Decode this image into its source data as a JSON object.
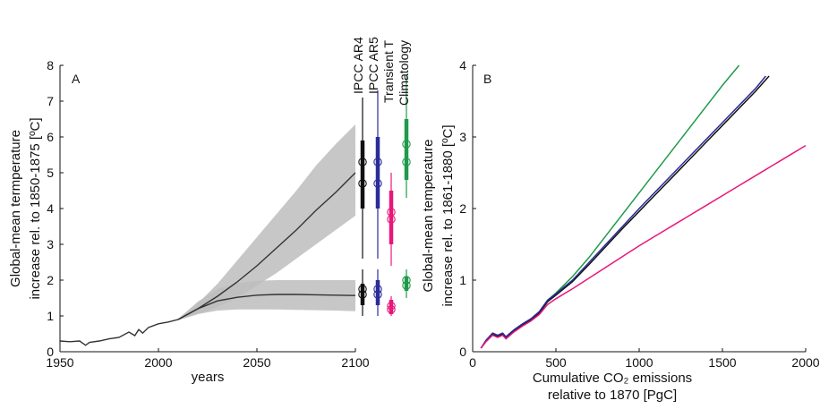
{
  "chart_data": [
    {
      "type": "line",
      "panel_label": "A",
      "xlabel": "years",
      "ylabel_lines": [
        "Global-mean termperature",
        "increase rel. to 1850-1875 [ºC]"
      ],
      "xlim": [
        1950,
        2100
      ],
      "ylim": [
        0,
        8
      ],
      "xticks": [
        1950,
        2000,
        2050,
        2100
      ],
      "yticks": [
        0,
        1,
        2,
        3,
        4,
        5,
        6,
        7,
        8
      ],
      "grid": false,
      "series": [
        {
          "color": "#333333",
          "x": [
            1950,
            1955,
            1960,
            1963,
            1965,
            1970,
            1975,
            1980,
            1985,
            1988,
            1990,
            1992,
            1995,
            2000,
            2005,
            2010,
            2020,
            2030,
            2040,
            2050,
            2060,
            2070,
            2080,
            2090,
            2100
          ],
          "y": [
            0.3,
            0.28,
            0.3,
            0.18,
            0.26,
            0.3,
            0.36,
            0.4,
            0.55,
            0.45,
            0.62,
            0.52,
            0.68,
            0.78,
            0.83,
            0.9,
            1.2,
            1.55,
            1.95,
            2.4,
            2.9,
            3.4,
            3.95,
            4.45,
            5.0
          ],
          "y_low": [
            0.3,
            0.28,
            0.3,
            0.18,
            0.26,
            0.3,
            0.36,
            0.4,
            0.55,
            0.45,
            0.62,
            0.52,
            0.68,
            0.78,
            0.83,
            0.88,
            1.05,
            1.25,
            1.5,
            1.85,
            2.2,
            2.6,
            3.0,
            3.4,
            3.8
          ],
          "y_high": [
            0.3,
            0.28,
            0.3,
            0.18,
            0.26,
            0.3,
            0.36,
            0.4,
            0.55,
            0.45,
            0.62,
            0.52,
            0.68,
            0.78,
            0.83,
            0.92,
            1.35,
            1.9,
            2.55,
            3.2,
            3.85,
            4.5,
            5.2,
            5.8,
            6.35
          ]
        },
        {
          "color": "#333333",
          "x": [
            2010,
            2020,
            2030,
            2040,
            2050,
            2060,
            2070,
            2080,
            2090,
            2100
          ],
          "y": [
            0.9,
            1.2,
            1.42,
            1.52,
            1.58,
            1.6,
            1.6,
            1.59,
            1.58,
            1.57
          ],
          "y_low": [
            0.88,
            1.05,
            1.15,
            1.18,
            1.18,
            1.18,
            1.17,
            1.16,
            1.15,
            1.13
          ],
          "y_high": [
            0.92,
            1.4,
            1.75,
            1.92,
            1.98,
            2.0,
            2.0,
            2.0,
            2.0,
            2.0
          ]
        }
      ],
      "ranges": {
        "labels": [
          "IPCC AR4",
          "IPCC AR5",
          "Transient T",
          "Climatology"
        ],
        "colors": [
          "#111111",
          "#2b2b9a",
          "#e8177a",
          "#1f9a4a"
        ],
        "high": [
          {
            "low": 2.6,
            "q1": 4.0,
            "q3": 5.9,
            "high": 7.1,
            "m1": 5.3,
            "m2": 4.7
          },
          {
            "low": 2.6,
            "q1": 4.0,
            "q3": 6.0,
            "high": 7.3,
            "m1": 5.3,
            "m2": 4.7
          },
          {
            "low": 2.4,
            "q1": 3.0,
            "q3": 4.5,
            "high": 5.0,
            "m1": 3.9,
            "m2": 3.7
          },
          {
            "low": 4.3,
            "q1": 4.8,
            "q3": 6.5,
            "high": 7.7,
            "m1": 5.8,
            "m2": 5.3
          }
        ],
        "low": [
          {
            "low": 1.0,
            "q1": 1.3,
            "q3": 1.9,
            "high": 2.3,
            "m1": 1.75,
            "m2": 1.6
          },
          {
            "low": 1.0,
            "q1": 1.3,
            "q3": 2.0,
            "high": 2.3,
            "m1": 1.75,
            "m2": 1.6
          },
          {
            "low": 1.0,
            "q1": 1.05,
            "q3": 1.45,
            "high": 1.55,
            "m1": 1.28,
            "m2": 1.18
          },
          {
            "low": 1.5,
            "q1": 1.7,
            "q3": 2.1,
            "high": 2.3,
            "m1": 2.0,
            "m2": 1.85
          }
        ]
      }
    },
    {
      "type": "line",
      "panel_label": "B",
      "xlabel_lines": [
        "Cumulative CO₂ emissions",
        "relative to 1870 [PgC]"
      ],
      "ylabel_lines": [
        "Global-mean temperature",
        "increase rel. to 1861-1880 [ºC]"
      ],
      "xlim": [
        0,
        2000
      ],
      "ylim": [
        0,
        4
      ],
      "xticks": [
        0,
        500,
        1000,
        1500,
        2000
      ],
      "yticks": [
        0,
        1,
        2,
        3,
        4
      ],
      "grid": false,
      "series": [
        {
          "color": "#1f9a4a",
          "x": [
            50,
            80,
            120,
            150,
            180,
            200,
            250,
            300,
            350,
            400,
            450,
            500,
            600,
            700,
            800,
            900,
            1000,
            1100,
            1200,
            1300,
            1400,
            1500,
            1600
          ],
          "y": [
            0.05,
            0.15,
            0.25,
            0.22,
            0.25,
            0.2,
            0.3,
            0.38,
            0.45,
            0.55,
            0.72,
            0.82,
            1.05,
            1.32,
            1.62,
            1.92,
            2.22,
            2.52,
            2.82,
            3.12,
            3.42,
            3.72,
            4.0
          ]
        },
        {
          "color": "#111111",
          "x": [
            50,
            80,
            120,
            150,
            180,
            200,
            250,
            300,
            350,
            400,
            450,
            500,
            600,
            700,
            800,
            900,
            1000,
            1100,
            1200,
            1300,
            1400,
            1500,
            1600,
            1700,
            1780
          ],
          "y": [
            0.05,
            0.15,
            0.24,
            0.21,
            0.24,
            0.19,
            0.29,
            0.37,
            0.44,
            0.54,
            0.7,
            0.79,
            0.98,
            1.22,
            1.47,
            1.72,
            1.96,
            2.2,
            2.44,
            2.68,
            2.92,
            3.16,
            3.4,
            3.64,
            3.85
          ]
        },
        {
          "color": "#2b2b9a",
          "x": [
            50,
            80,
            120,
            150,
            180,
            200,
            250,
            300,
            350,
            400,
            450,
            500,
            600,
            700,
            800,
            900,
            1000,
            1100,
            1200,
            1300,
            1400,
            1500,
            1600,
            1700,
            1760
          ],
          "y": [
            0.05,
            0.16,
            0.26,
            0.23,
            0.26,
            0.21,
            0.31,
            0.39,
            0.46,
            0.56,
            0.72,
            0.81,
            1.0,
            1.25,
            1.5,
            1.75,
            2.0,
            2.24,
            2.48,
            2.72,
            2.96,
            3.2,
            3.44,
            3.68,
            3.85
          ]
        },
        {
          "color": "#e8177a",
          "x": [
            50,
            80,
            120,
            150,
            180,
            200,
            250,
            300,
            350,
            400,
            450,
            500,
            600,
            700,
            800,
            900,
            1000,
            1100,
            1200,
            1300,
            1400,
            1500,
            1600,
            1700,
            1800,
            1900,
            2000
          ],
          "y": [
            0.05,
            0.14,
            0.23,
            0.2,
            0.23,
            0.18,
            0.28,
            0.36,
            0.43,
            0.52,
            0.66,
            0.74,
            0.88,
            1.03,
            1.18,
            1.33,
            1.48,
            1.62,
            1.76,
            1.9,
            2.04,
            2.18,
            2.32,
            2.46,
            2.6,
            2.74,
            2.88
          ]
        }
      ]
    }
  ]
}
